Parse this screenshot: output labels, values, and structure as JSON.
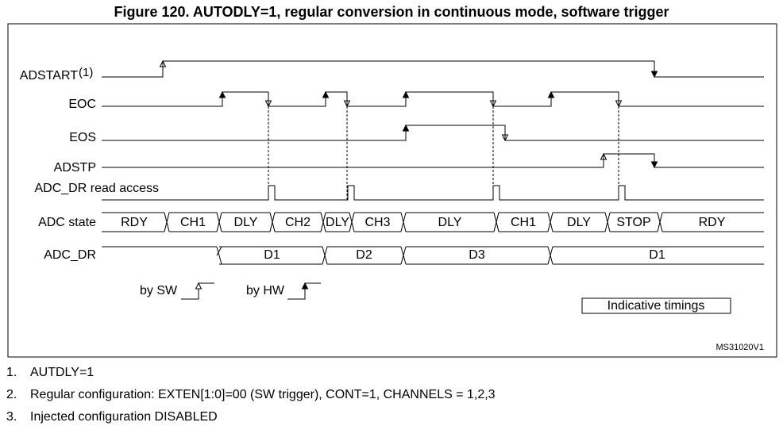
{
  "title": "Figure 120. AUTODLY=1, regular conversion in continuous mode, software trigger",
  "signals": [
    {
      "label": "ADSTART",
      "note": "(1)"
    },
    {
      "label": "EOC"
    },
    {
      "label": "EOS"
    },
    {
      "label": "ADSTP"
    },
    {
      "label": "ADC_DR read access"
    },
    {
      "label": "ADC state"
    },
    {
      "label": "ADC_DR"
    }
  ],
  "adc_state": [
    "RDY",
    "CH1",
    "DLY",
    "CH2",
    "DLY",
    "CH3",
    "DLY",
    "CH1",
    "DLY",
    "STOP",
    "RDY"
  ],
  "adc_dr": [
    "D1",
    "D2",
    "D3",
    "D1"
  ],
  "legend": {
    "by_sw": "by SW",
    "by_hw": "by HW"
  },
  "indicative": "Indicative timings",
  "code": "MS31020V1",
  "notes": [
    {
      "number": "1.",
      "text": "AUTDLY=1"
    },
    {
      "number": "2.",
      "text": "Regular configuration: EXTEN[1:0]=00 (SW trigger), CONT=1, CHANNELS = 1,2,3"
    },
    {
      "number": "3.",
      "text": "Injected configuration DISABLED"
    }
  ]
}
